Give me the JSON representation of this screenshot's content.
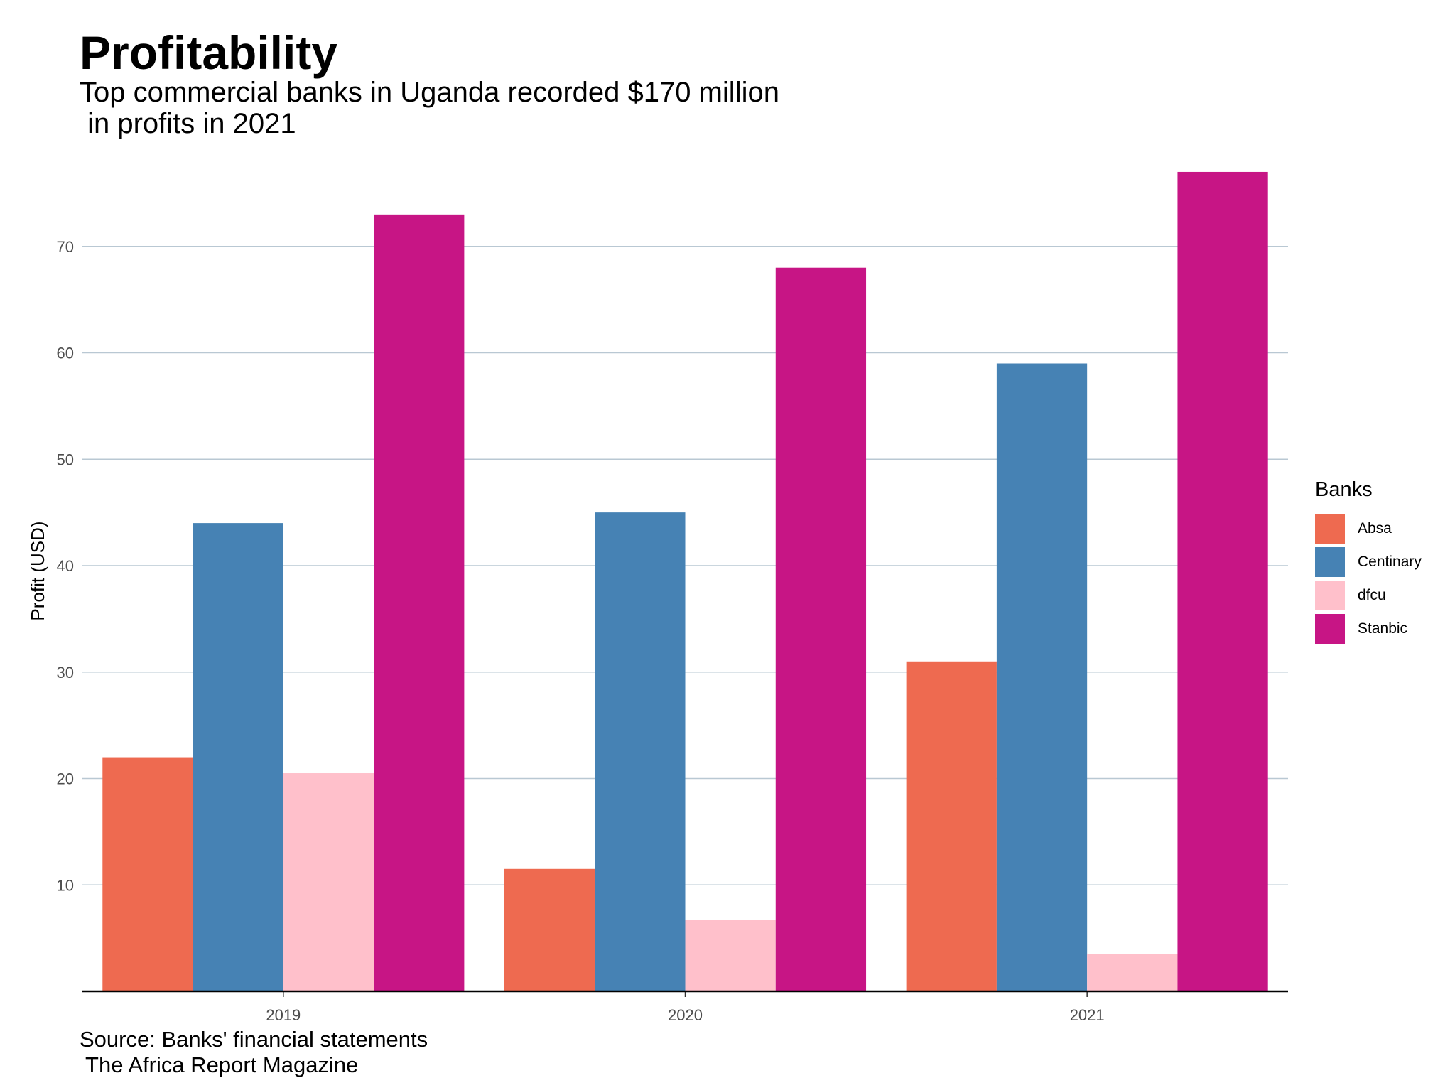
{
  "title": "Profitability",
  "subtitle_lines": [
    "Top commercial banks in Uganda recorded $170 million",
    " in profits in 2021"
  ],
  "caption_lines": [
    "Source: Banks' financial statements",
    " The Africa Report Magazine"
  ],
  "legend_title": "Banks",
  "chart_data": {
    "type": "bar",
    "categories": [
      "2019",
      "2020",
      "2021"
    ],
    "series": [
      {
        "name": "Absa",
        "color": "#EE6A50",
        "values": [
          22,
          11.5,
          31
        ]
      },
      {
        "name": "Centinary",
        "color": "#4682B4",
        "values": [
          44,
          45,
          59
        ]
      },
      {
        "name": "dfcu",
        "color": "#FFC0CB",
        "values": [
          20.5,
          6.7,
          3.5
        ]
      },
      {
        "name": "Stanbic",
        "color": "#C71585",
        "values": [
          73,
          68,
          77
        ]
      }
    ],
    "ylabel": "Profit (USD)",
    "xlabel": "",
    "yticks": [
      10,
      20,
      30,
      40,
      50,
      60,
      70
    ],
    "ylim": [
      0,
      79
    ],
    "grid": true,
    "legend_position": "right"
  }
}
